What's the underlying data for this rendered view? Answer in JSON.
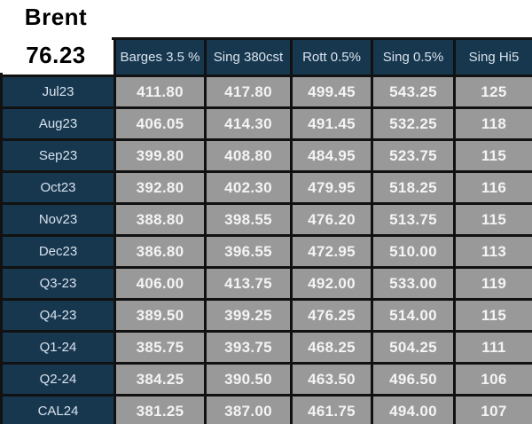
{
  "benchmark": {
    "name": "Brent",
    "price": "76.23"
  },
  "table": {
    "columns": [
      "Barges 3.5 %",
      "Sing 380cst",
      "Rott 0.5%",
      "Sing 0.5%",
      "Sing Hi5"
    ],
    "rows": [
      {
        "label": "Jul23",
        "values": [
          "411.80",
          "417.80",
          "499.45",
          "543.25",
          "125"
        ]
      },
      {
        "label": "Aug23",
        "values": [
          "406.05",
          "414.30",
          "491.45",
          "532.25",
          "118"
        ]
      },
      {
        "label": "Sep23",
        "values": [
          "399.80",
          "408.80",
          "484.95",
          "523.75",
          "115"
        ]
      },
      {
        "label": "Oct23",
        "values": [
          "392.80",
          "402.30",
          "479.95",
          "518.25",
          "116"
        ]
      },
      {
        "label": "Nov23",
        "values": [
          "388.80",
          "398.55",
          "476.20",
          "513.75",
          "115"
        ]
      },
      {
        "label": "Dec23",
        "values": [
          "386.80",
          "396.55",
          "472.95",
          "510.00",
          "113"
        ]
      },
      {
        "label": "Q3-23",
        "values": [
          "406.00",
          "413.75",
          "492.00",
          "533.00",
          "119"
        ]
      },
      {
        "label": "Q4-23",
        "values": [
          "389.50",
          "399.25",
          "476.25",
          "514.00",
          "115"
        ]
      },
      {
        "label": "Q1-24",
        "values": [
          "385.75",
          "393.75",
          "468.25",
          "504.25",
          "111"
        ]
      },
      {
        "label": "Q2-24",
        "values": [
          "384.25",
          "390.50",
          "463.50",
          "496.50",
          "106"
        ]
      },
      {
        "label": "CAL24",
        "values": [
          "381.25",
          "387.00",
          "461.75",
          "494.00",
          "107"
        ]
      }
    ]
  },
  "colors": {
    "header_navy": "#17374f",
    "cell_gray": "#999999",
    "grid_line": "#111111",
    "value_text": "#f4f4f4",
    "label_text": "#d8e2ec",
    "benchmark_text": "#000000",
    "background": "#ffffff"
  }
}
